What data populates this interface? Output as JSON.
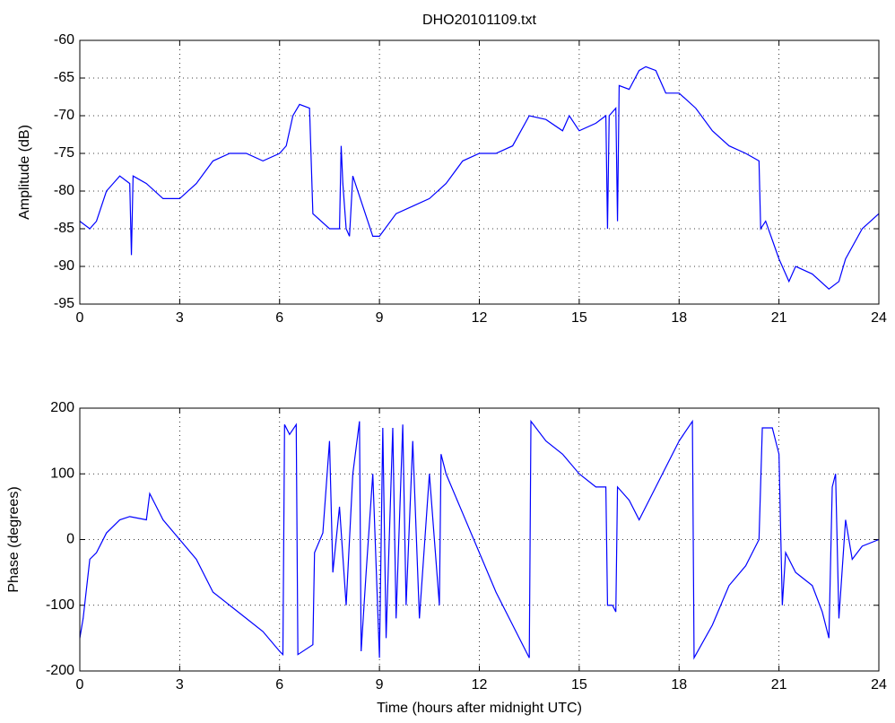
{
  "chart_data": [
    {
      "type": "line",
      "title": "DHO20101109.txt",
      "ylabel": "Amplitude (dB)",
      "color": "#0000ff",
      "grid": true,
      "xlim": [
        0,
        24
      ],
      "xticks": [
        0,
        3,
        6,
        9,
        12,
        15,
        18,
        21,
        24
      ],
      "ylim": [
        -95,
        -60
      ],
      "yticks": [
        -95,
        -90,
        -85,
        -80,
        -75,
        -70,
        -65,
        -60
      ],
      "x": [
        0,
        0.3,
        0.5,
        0.8,
        1.2,
        1.5,
        1.55,
        1.6,
        2.0,
        2.5,
        3.0,
        3.5,
        4.0,
        4.5,
        5.0,
        5.5,
        6.0,
        6.2,
        6.4,
        6.6,
        6.9,
        7.0,
        7.5,
        7.8,
        7.85,
        7.9,
        8.0,
        8.1,
        8.2,
        8.5,
        8.8,
        9.0,
        9.5,
        10.0,
        10.5,
        11.0,
        11.5,
        12.0,
        12.5,
        13.0,
        13.5,
        14.0,
        14.5,
        14.7,
        15.0,
        15.5,
        15.8,
        15.85,
        15.9,
        16.1,
        16.15,
        16.2,
        16.5,
        16.8,
        17.0,
        17.3,
        17.6,
        18.0,
        18.5,
        19.0,
        19.5,
        20.0,
        20.4,
        20.45,
        20.6,
        21.0,
        21.3,
        21.5,
        22.0,
        22.5,
        22.8,
        23.0,
        23.5,
        24.0
      ],
      "values": [
        -84,
        -85,
        -84,
        -80,
        -78,
        -79,
        -88.5,
        -78,
        -79,
        -81,
        -81,
        -79,
        -76,
        -75,
        -75,
        -76,
        -75,
        -74,
        -70,
        -68.5,
        -69,
        -83,
        -85,
        -85,
        -74,
        -79,
        -85,
        -86,
        -78,
        -82,
        -86,
        -86,
        -83,
        -82,
        -81,
        -79,
        -76,
        -75,
        -75,
        -74,
        -70,
        -70.5,
        -72,
        -70,
        -72,
        -71,
        -70,
        -85,
        -70,
        -69,
        -84,
        -66,
        -66.5,
        -64,
        -63.5,
        -64,
        -67,
        -67,
        -69,
        -72,
        -74,
        -75,
        -76,
        -85,
        -84,
        -89,
        -92,
        -90,
        -91,
        -93,
        -92,
        -89,
        -85,
        -83
      ]
    },
    {
      "type": "line",
      "ylabel": "Phase (degrees)",
      "xlabel": "Time (hours after midnight UTC)",
      "color": "#0000ff",
      "grid": true,
      "xlim": [
        0,
        24
      ],
      "xticks": [
        0,
        3,
        6,
        9,
        12,
        15,
        18,
        21,
        24
      ],
      "ylim": [
        -200,
        200
      ],
      "yticks": [
        -200,
        -100,
        0,
        100,
        200
      ],
      "x": [
        0,
        0.1,
        0.3,
        0.5,
        0.8,
        1.2,
        1.5,
        2.0,
        2.1,
        2.3,
        2.5,
        3.0,
        3.5,
        4.0,
        4.5,
        5.0,
        5.5,
        6.0,
        6.1,
        6.15,
        6.3,
        6.5,
        6.55,
        7.0,
        7.05,
        7.3,
        7.5,
        7.6,
        7.8,
        8.0,
        8.2,
        8.4,
        8.45,
        8.6,
        8.8,
        9.0,
        9.1,
        9.2,
        9.4,
        9.5,
        9.7,
        9.8,
        10.0,
        10.2,
        10.5,
        10.8,
        10.85,
        11.0,
        11.5,
        12.0,
        12.5,
        13.0,
        13.5,
        13.55,
        14.0,
        14.5,
        15.0,
        15.5,
        15.8,
        15.85,
        16.0,
        16.1,
        16.15,
        16.5,
        16.8,
        17.0,
        17.5,
        18.0,
        18.4,
        18.45,
        19.0,
        19.5,
        20.0,
        20.2,
        20.4,
        20.5,
        20.8,
        21.0,
        21.1,
        21.2,
        21.5,
        22.0,
        22.3,
        22.5,
        22.6,
        22.7,
        22.8,
        23.0,
        23.2,
        23.5,
        24.0
      ],
      "values": [
        -150,
        -120,
        -30,
        -20,
        10,
        30,
        35,
        30,
        70,
        50,
        30,
        0,
        -30,
        -80,
        -100,
        -120,
        -140,
        -170,
        -175,
        175,
        160,
        175,
        -175,
        -160,
        -20,
        10,
        150,
        -50,
        50,
        -100,
        100,
        180,
        -170,
        -50,
        100,
        -180,
        170,
        -150,
        170,
        -120,
        175,
        -100,
        150,
        -120,
        100,
        -100,
        130,
        100,
        40,
        -20,
        -80,
        -130,
        -180,
        180,
        150,
        130,
        100,
        80,
        80,
        -100,
        -100,
        -110,
        80,
        60,
        30,
        50,
        100,
        150,
        180,
        -180,
        -130,
        -70,
        -40,
        -20,
        0,
        170,
        170,
        130,
        -100,
        -20,
        -50,
        -70,
        -110,
        -150,
        80,
        100,
        -120,
        30,
        -30,
        -10,
        0
      ]
    }
  ]
}
